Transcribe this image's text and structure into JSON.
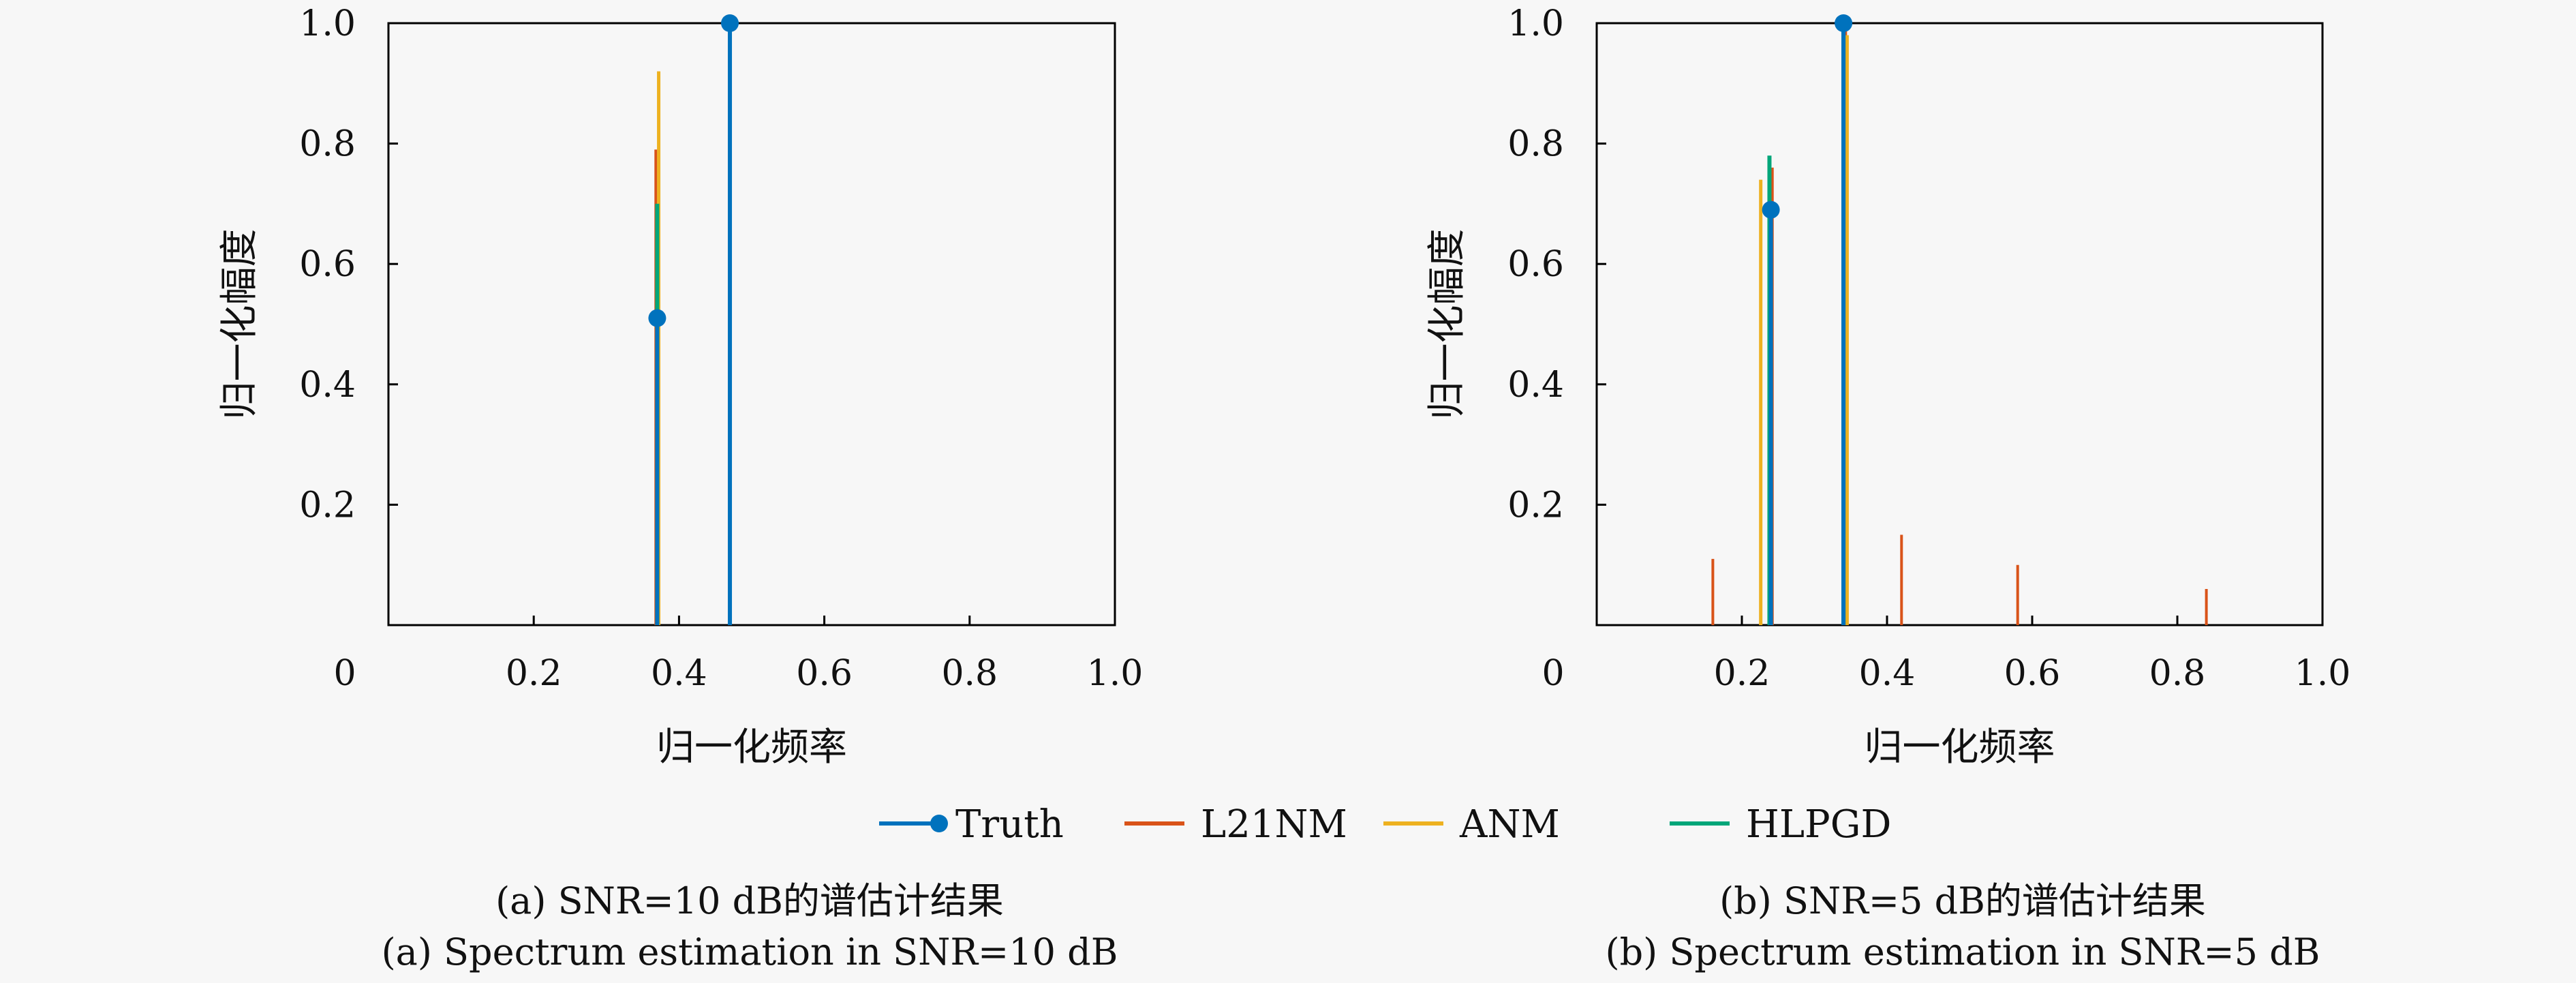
{
  "chart_data": [
    {
      "type": "stem",
      "xlabel": "归一化频率",
      "ylabel": "归一化幅度",
      "xlim": [
        0,
        1.0
      ],
      "ylim": [
        0,
        1.0
      ],
      "xticks": [
        "0",
        "0.2",
        "0.4",
        "0.6",
        "0.8",
        "1.0"
      ],
      "yticks": [
        "0.2",
        "0.4",
        "0.6",
        "0.8",
        "1.0"
      ],
      "series": [
        {
          "name": "Truth",
          "points": [
            [
              0.37,
              0.51
            ],
            [
              0.47,
              1.0
            ]
          ]
        },
        {
          "name": "L21NM",
          "points": [
            [
              0.368,
              0.79
            ],
            [
              0.47,
              1.0
            ]
          ]
        },
        {
          "name": "ANM",
          "points": [
            [
              0.372,
              0.92
            ],
            [
              0.47,
              1.0
            ]
          ]
        },
        {
          "name": "HLPGD",
          "points": [
            [
              0.37,
              0.7
            ],
            [
              0.47,
              1.0
            ]
          ]
        }
      ],
      "caption_cn": "(a) SNR=10 dB的谱估计结果",
      "caption_en": "(a) Spectrum estimation in SNR=10 dB"
    },
    {
      "type": "stem",
      "xlabel": "归一化频率",
      "ylabel": "归一化幅度",
      "xlim": [
        0,
        1.0
      ],
      "ylim": [
        0,
        1.0
      ],
      "xticks": [
        "0",
        "0.2",
        "0.4",
        "0.6",
        "0.8",
        "1.0"
      ],
      "yticks": [
        "0.2",
        "0.4",
        "0.6",
        "0.8",
        "1.0"
      ],
      "series": [
        {
          "name": "Truth",
          "points": [
            [
              0.24,
              0.69
            ],
            [
              0.34,
              1.0
            ]
          ]
        },
        {
          "name": "L21NM",
          "points": [
            [
              0.16,
              0.11
            ],
            [
              0.242,
              0.76
            ],
            [
              0.343,
              0.99
            ],
            [
              0.42,
              0.15
            ],
            [
              0.58,
              0.1
            ],
            [
              0.84,
              0.06
            ]
          ]
        },
        {
          "name": "ANM",
          "points": [
            [
              0.226,
              0.74
            ],
            [
              0.345,
              0.98
            ]
          ]
        },
        {
          "name": "HLPGD",
          "points": [
            [
              0.238,
              0.78
            ],
            [
              0.34,
              1.0
            ]
          ]
        }
      ],
      "caption_cn": "(b) SNR=5 dB的谱估计结果",
      "caption_en": "(b) Spectrum estimation in SNR=5 dB"
    }
  ],
  "legend": {
    "entries": [
      {
        "name": "Truth",
        "color": "#0072bd"
      },
      {
        "name": "L21NM",
        "color": "#d95319"
      },
      {
        "name": "ANM",
        "color": "#edb120"
      },
      {
        "name": "HLPGD",
        "color": "#00a679"
      }
    ]
  },
  "colors": {
    "Truth": "#0072bd",
    "L21NM": "#d95319",
    "ANM": "#edb120",
    "HLPGD": "#00a679"
  }
}
